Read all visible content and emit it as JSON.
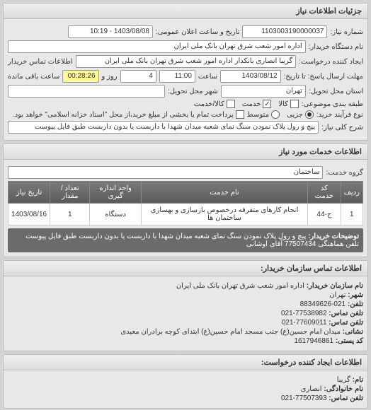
{
  "panel1": {
    "title": "جزئیات اطلاعات نیاز",
    "req_number_label": "شماره نیاز:",
    "req_number": "1103003190000037",
    "announce_date_label": "تاریخ و ساعت اعلان عمومی:",
    "announce_date": "1403/08/08 - 10:19",
    "buyer_org_label": "نام دستگاه خریدار:",
    "buyer_org": "اداره امور شعب شرق تهران بانک ملی ایران",
    "requester_label": "ایجاد کننده درخواست:",
    "requester": "گریبا انصاری  بانکدار  اداره امور شعب شرق تهران بانک ملی ایران",
    "buyer_contact_label": "اطلاعات تماس خریدار",
    "deadline_label": "مهلت ارسال پاسخ: تا تاریخ:",
    "deadline_date": "1403/08/12",
    "time_label": "ساعت",
    "deadline_time": "11:00",
    "days_label": "روز و",
    "days": "4",
    "remaining": "00:28:26",
    "remaining_label": "ساعت باقی مانده",
    "province_label": "استان محل تحویل:",
    "province": "تهران",
    "city_label": "شهر محل تحویل:",
    "cat_label": "طبقه بندی موضوعی:",
    "goods": "کالا",
    "service": "خدمت",
    "goods_service": "کالا/خدمت",
    "process_label": "نوع فرآیند خرید:",
    "small": "جزیی",
    "medium": "متوسط",
    "process_note": "پرداخت تمام یا بخشی از مبلغ خرید،از محل \"اسناد خزانه اسلامی\" خواهد بود.",
    "desc_label": "شرح کلی نیاز:",
    "desc": "پیچ و رول پلاک نمودن سنگ نمای شعبه میدان شهدا با داربست یا بدون داربست طبق فایل پیوست"
  },
  "panel2": {
    "title": "اطلاعات خدمات مورد نیاز",
    "group_label": "گروه خدمت:",
    "group": "ساختمان",
    "table": {
      "headers": [
        "ردیف",
        "کد خدمت",
        "نام خدمت",
        "واحد اندازه گیری",
        "تعداد / مقدار",
        "تاریخ نیاز"
      ],
      "row": [
        "1",
        "ج-44",
        "انجام کارهای متفرقه درخصوص بازسازی و بهسازی ساختمان ها",
        "دستگاه",
        "1",
        "1403/08/16"
      ]
    },
    "notes_label": "توضیحات خریدار:",
    "notes": "پیچ و رول پلاک نمودن سنگ نمای شعبه میدان شهدا با داربست یا بدون داربست طبق فایل پیوست تلفن هماهنگی 77507434 آقای اوشانی"
  },
  "panel3": {
    "title": "اطلاعات تماس سازمان خریدار:",
    "org_label": "نام سازمان خریدار:",
    "org": "اداره امور شعب شرق تهران بانک ملی ایران",
    "city_label": "شهر:",
    "city": "تهران",
    "tel_label": "تلفن:",
    "tel": "021-88349626",
    "tel_fax_label": "تلفن تماس:",
    "tel_fax": "77538982-021",
    "fax_label": "تلفن تماس:",
    "fax": "77609011-021",
    "addr_label": "نشانی:",
    "addr": "میدان امام حسین(ع) جنب مسجد امام حسین(ع) ابتدای کوچه برادران معیدی",
    "postal_label": "کد پستی:",
    "postal": "1617946861"
  },
  "panel4": {
    "title": "اطلاعات ایجاد کننده درخواست:",
    "name_label": "نام:",
    "name": "گریبا",
    "lname_label": "نام خانوادگی:",
    "lname": "انصاری",
    "tel_label": "تلفن تماس:",
    "tel": "77507393-021"
  }
}
